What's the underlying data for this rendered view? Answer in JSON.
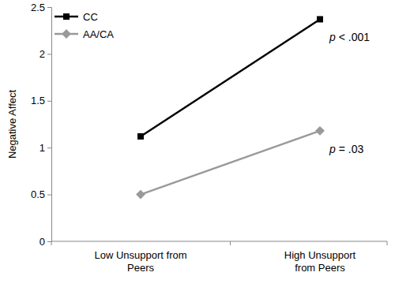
{
  "chart_data": {
    "type": "line",
    "y_label": "Negative Affect",
    "categories": [
      "Low Unsupport from Peers",
      "High Unsupport from Peers"
    ],
    "series": [
      {
        "name": "CC",
        "color": "#000000",
        "marker": "square",
        "values": [
          1.12,
          2.37
        ]
      },
      {
        "name": "AA/CA",
        "color": "#999999",
        "marker": "diamond",
        "values": [
          0.5,
          1.18
        ]
      }
    ],
    "annotations": [
      "p < .001",
      "p = .03"
    ],
    "ylim": [
      0,
      2.5
    ],
    "yticks": [
      0,
      0.5,
      1,
      1.5,
      2,
      2.5
    ],
    "grid": false,
    "legend": "upper left"
  }
}
